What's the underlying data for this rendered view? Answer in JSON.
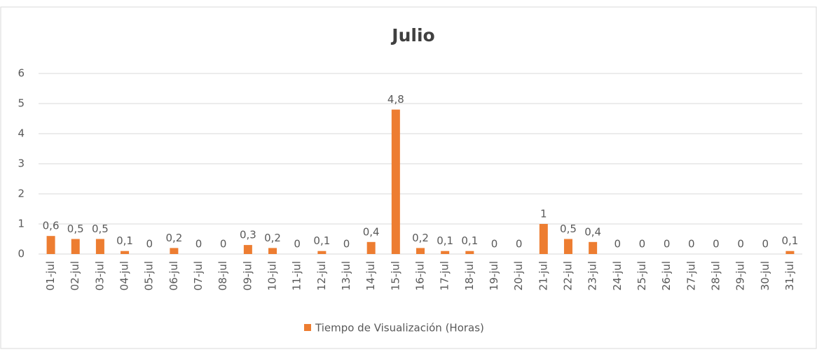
{
  "chart_data": {
    "type": "bar",
    "title": "Julio",
    "categories": [
      "01-jul",
      "02-jul",
      "03-jul",
      "04-jul",
      "05-jul",
      "06-jul",
      "07-jul",
      "08-jul",
      "09-jul",
      "10-jul",
      "11-jul",
      "12-jul",
      "13-jul",
      "14-jul",
      "15-jul",
      "16-jul",
      "17-jul",
      "18-jul",
      "19-jul",
      "20-jul",
      "21-jul",
      "22-jul",
      "23-jul",
      "24-jul",
      "25-jul",
      "26-jul",
      "27-jul",
      "28-jul",
      "29-jul",
      "30-jul",
      "31-jul"
    ],
    "series": [
      {
        "name": "Tiempo de Visualización (Horas)",
        "color": "#ed7d31",
        "values": [
          0.6,
          0.5,
          0.5,
          0.1,
          0,
          0.2,
          0,
          0,
          0.3,
          0.2,
          0,
          0.1,
          0,
          0.4,
          4.8,
          0.2,
          0.1,
          0.1,
          0,
          0,
          1,
          0.5,
          0.4,
          0,
          0,
          0,
          0,
          0,
          0,
          0,
          0.1
        ],
        "value_labels": [
          "0,6",
          "0,5",
          "0,5",
          "0,1",
          "0",
          "0,2",
          "0",
          "0",
          "0,3",
          "0,2",
          "0",
          "0,1",
          "0",
          "0,4",
          "4,8",
          "0,2",
          "0,1",
          "0,1",
          "0",
          "0",
          "1",
          "0,5",
          "0,4",
          "0",
          "0",
          "0",
          "0",
          "0",
          "0",
          "0",
          "0,1"
        ]
      }
    ],
    "ylim": [
      0,
      6
    ],
    "yticks": [
      0,
      1,
      2,
      3,
      4,
      5,
      6
    ],
    "grid": true,
    "legend": "bottom"
  }
}
